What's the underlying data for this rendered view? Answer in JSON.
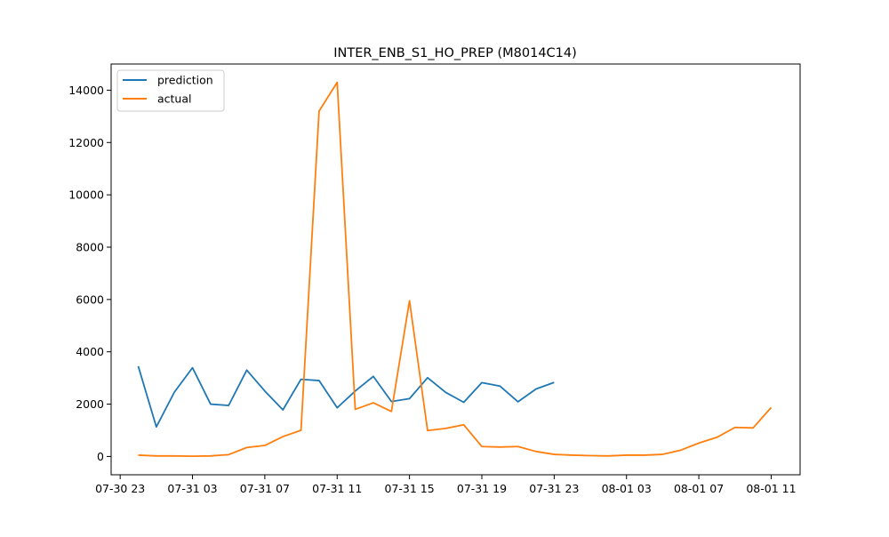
{
  "chart_data": {
    "type": "line",
    "title": "INTER_ENB_S1_HO_PREP (M8014C14)",
    "xlabel": "",
    "ylabel": "",
    "x_tick_labels": [
      "07-30 23",
      "07-31 03",
      "07-31 07",
      "07-31 11",
      "07-31 15",
      "07-31 19",
      "07-31 23",
      "08-01 03",
      "08-01 07",
      "08-01 11"
    ],
    "x_tick_hours": [
      23,
      27,
      31,
      35,
      39,
      43,
      47,
      51,
      55,
      59
    ],
    "xlim_hours": [
      22.5,
      60.6
    ],
    "y_ticks": [
      0,
      2000,
      4000,
      6000,
      8000,
      10000,
      12000,
      14000
    ],
    "ylim": [
      -700,
      15000
    ],
    "grid": false,
    "legend_position": "top-left",
    "series": [
      {
        "name": "prediction",
        "color": "#1f77b4",
        "x_hours": [
          24,
          25,
          26,
          27,
          28,
          29,
          30,
          31,
          32,
          33,
          34,
          35,
          36,
          37,
          38,
          39,
          40,
          41,
          42,
          43,
          44,
          45,
          46,
          47
        ],
        "values": [
          3450,
          1130,
          2460,
          3390,
          2000,
          1950,
          3300,
          2500,
          1780,
          2950,
          2900,
          1860,
          2500,
          3060,
          2100,
          2210,
          3010,
          2450,
          2070,
          2820,
          2690,
          2090,
          2580,
          2830
        ]
      },
      {
        "name": "actual",
        "color": "#ff7f0e",
        "x_hours": [
          24,
          25,
          26,
          27,
          28,
          29,
          30,
          31,
          32,
          33,
          34,
          35,
          36,
          37,
          38,
          39,
          40,
          41,
          42,
          43,
          44,
          45,
          46,
          47,
          48,
          49,
          50,
          51,
          52,
          53,
          54,
          55,
          56,
          57,
          58,
          59
        ],
        "values": [
          50,
          20,
          20,
          10,
          20,
          70,
          340,
          420,
          760,
          1000,
          13200,
          14300,
          1800,
          2050,
          1720,
          5950,
          990,
          1070,
          1210,
          380,
          360,
          380,
          190,
          80,
          50,
          30,
          20,
          50,
          50,
          80,
          240,
          510,
          730,
          1110,
          1090,
          1870
        ]
      }
    ]
  }
}
